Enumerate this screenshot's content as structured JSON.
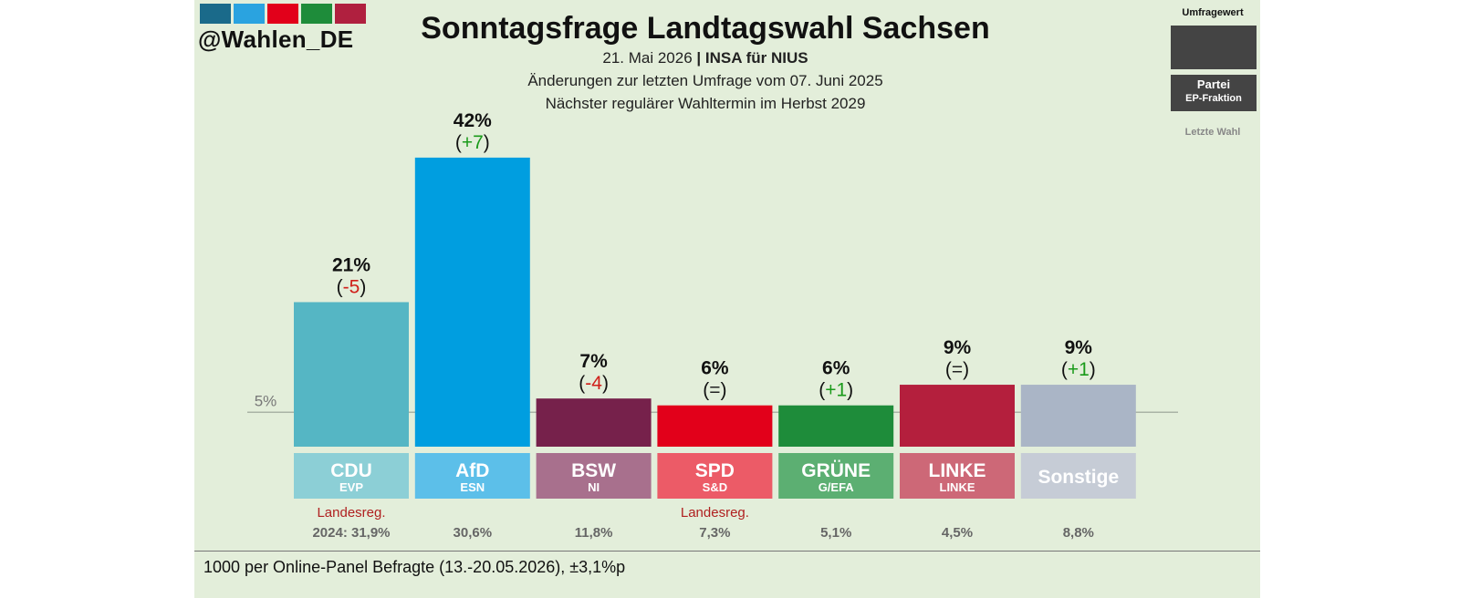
{
  "header": {
    "handle": "@Wahlen_DE",
    "title": "Sonntagsfrage Landtagswahl Sachsen",
    "date": "21. Mai 2026",
    "separator": "|",
    "pollster": "INSA für NIUS",
    "change_note": "Änderungen zur letzten Umfrage vom 07. Juni 2025",
    "next_election": "Nächster regulärer Wahltermin im Herbst 2029"
  },
  "legend": {
    "value_label": "Umfragewert",
    "party_label": "Partei",
    "faction_label": "EP-Fraktion",
    "last_vote_label": "Letzte Wahl"
  },
  "logo_colors": [
    "#1a6a8a",
    "#2aa3e0",
    "#e2001a",
    "#1e8c3a",
    "#b0203f"
  ],
  "chart_data": {
    "type": "bar",
    "categories": [
      "CDU",
      "AfD",
      "BSW",
      "SPD",
      "GRÜNE",
      "LINKE",
      "Sonstige"
    ],
    "values": [
      21,
      42,
      7,
      6,
      6,
      9,
      9
    ],
    "value_labels": [
      "21%",
      "42%",
      "7%",
      "6%",
      "6%",
      "9%",
      "9%"
    ],
    "changes": [
      "-5",
      "+7",
      "-4",
      "=",
      "+1",
      "=",
      "+1"
    ],
    "factions": [
      "EVP",
      "ESN",
      "NI",
      "S&D",
      "G/EFA",
      "LINKE",
      ""
    ],
    "government_label": "Landesreg.",
    "government": [
      true,
      false,
      false,
      true,
      false,
      false,
      false
    ],
    "last_election": [
      "2024: 31,9%",
      "30,6%",
      "11,8%",
      "7,3%",
      "5,1%",
      "4,5%",
      "8,8%"
    ],
    "threshold": 5,
    "threshold_label": "5%",
    "colors": [
      "#55b6c4",
      "#009ee0",
      "#76214b",
      "#e2001a",
      "#1e8c3a",
      "#b41f3d",
      "#aab5c6"
    ],
    "label_colors": [
      "#8ccfd6",
      "#5cbfe9",
      "#a8708d",
      "#ec5b67",
      "#5caf72",
      "#cd6877",
      "#c6ccd6"
    ],
    "change_colors": {
      "negative": "#d0201a",
      "positive": "#1a9a1a",
      "neutral": "#222222"
    }
  },
  "footer": {
    "note": "1000 per Online-Panel Befragte (13.-20.05.2026), ±3,1%p"
  }
}
